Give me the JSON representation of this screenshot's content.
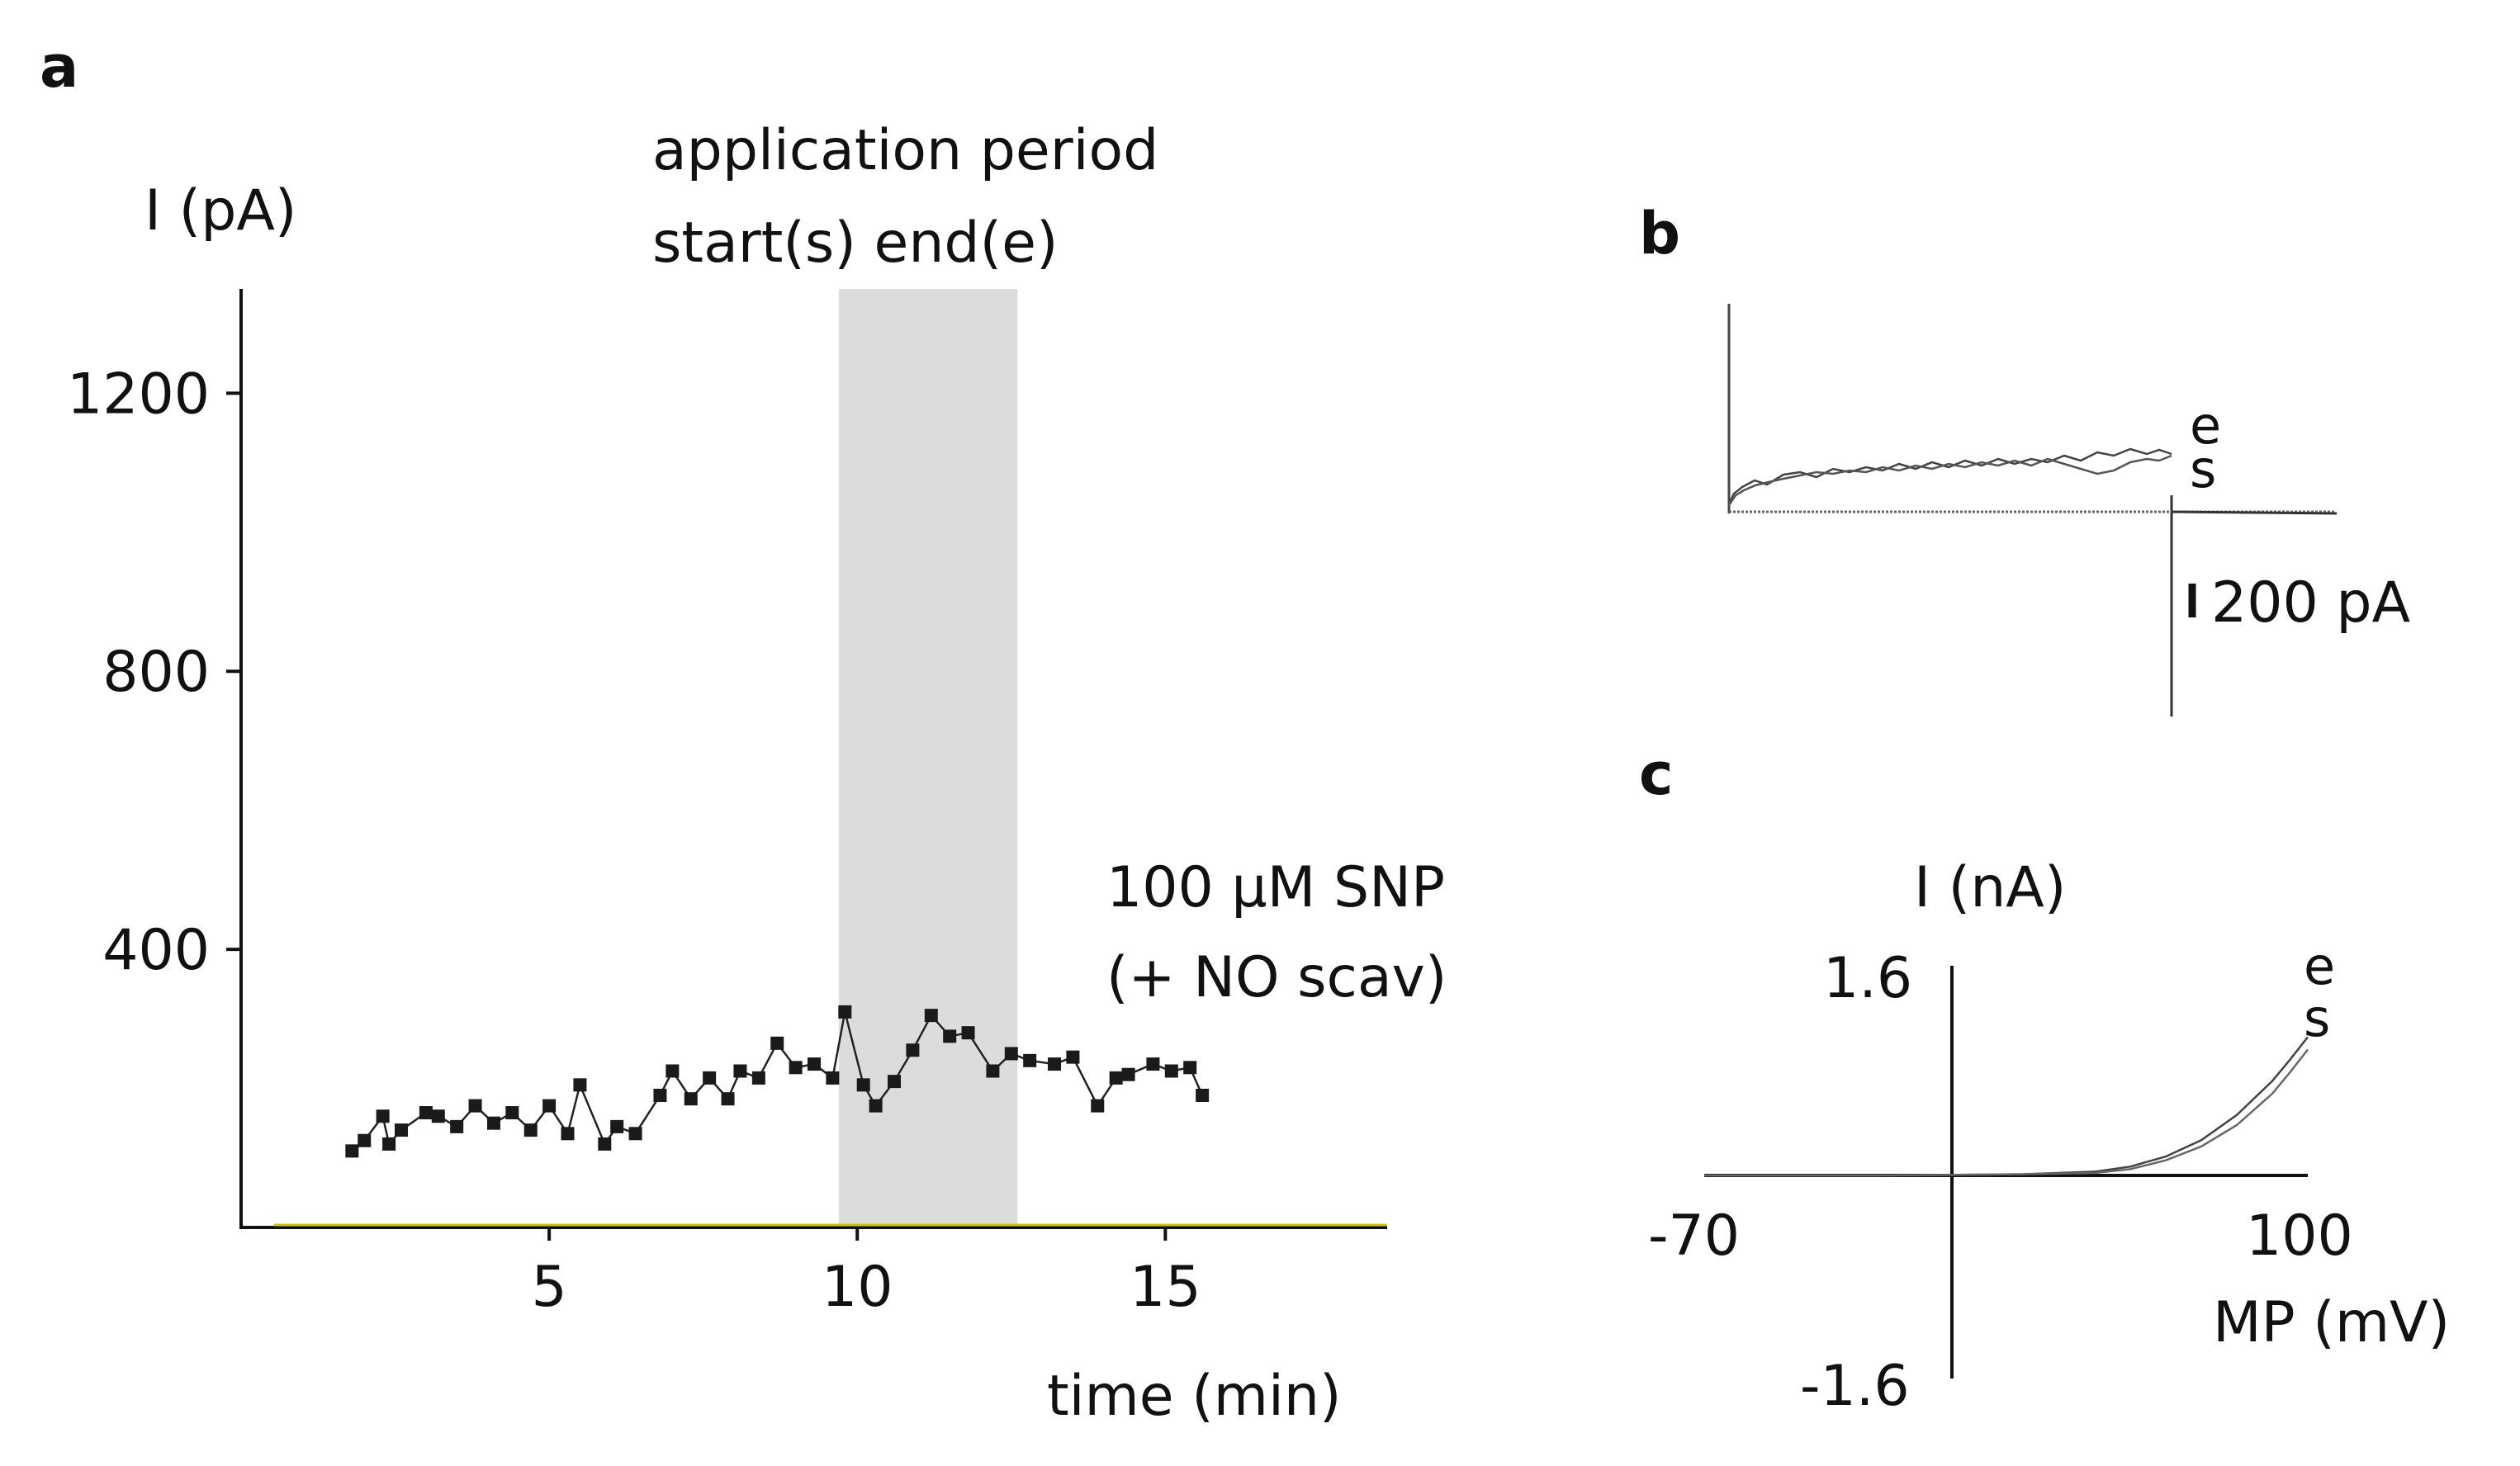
{
  "chart_data": [
    {
      "panel": "a",
      "type": "line",
      "ylabel": "I (pA)",
      "xlabel": "time (min)",
      "xlim": [
        0,
        18.6
      ],
      "ylim": [
        0,
        1350
      ],
      "xticks": [
        5,
        10,
        15
      ],
      "yticks": [
        400,
        800,
        1200
      ],
      "grid": false,
      "shaded_region": {
        "x_start": 9.7,
        "x_end": 12.6,
        "color": "#dcdcdc",
        "label_line1": "application period",
        "label_line2": "start(s) end(e)"
      },
      "annotation_line1": "100 μM SNP",
      "annotation_line2": "(+ NO scav)",
      "baseline_color": "#c8c800",
      "series": [
        {
          "name": "current",
          "marker": "square",
          "x": [
            1.8,
            2.0,
            2.3,
            2.4,
            2.6,
            3.0,
            3.2,
            3.5,
            3.8,
            4.1,
            4.4,
            4.7,
            5.0,
            5.3,
            5.5,
            5.9,
            6.1,
            6.4,
            6.8,
            7.0,
            7.3,
            7.6,
            7.9,
            8.1,
            8.4,
            8.7,
            9.0,
            9.3,
            9.6,
            9.8,
            10.1,
            10.3,
            10.6,
            10.9,
            11.2,
            11.5,
            11.8,
            12.2,
            12.5,
            12.8,
            13.2,
            13.5,
            13.9,
            14.2,
            14.4,
            14.8,
            15.1,
            15.4,
            15.6
          ],
          "y": [
            110,
            125,
            160,
            120,
            140,
            165,
            160,
            145,
            175,
            150,
            165,
            140,
            175,
            135,
            205,
            120,
            145,
            135,
            190,
            225,
            185,
            215,
            185,
            225,
            215,
            265,
            230,
            235,
            215,
            310,
            205,
            175,
            210,
            255,
            305,
            275,
            280,
            225,
            250,
            240,
            235,
            245,
            175,
            215,
            220,
            235,
            225,
            230,
            190
          ]
        }
      ]
    },
    {
      "panel": "b",
      "type": "line",
      "trace_labels": [
        "e",
        "s"
      ],
      "scale_bar_label": "200 pA"
    },
    {
      "panel": "c",
      "type": "line",
      "ylabel": "I (nA)",
      "xlabel": "MP (mV)",
      "xlim": [
        -70,
        100
      ],
      "ylim": [
        -1.6,
        1.6
      ],
      "xtick_labels": [
        "-70",
        "100"
      ],
      "ytick_labels": [
        "1.6",
        "-1.6"
      ],
      "trace_labels": [
        "e",
        "s"
      ],
      "series": [
        {
          "name": "e",
          "x": [
            -70,
            -20,
            20,
            40,
            50,
            60,
            70,
            80,
            90,
            95,
            100
          ],
          "y": [
            0,
            0,
            0.01,
            0.03,
            0.07,
            0.15,
            0.28,
            0.48,
            0.75,
            0.92,
            1.1
          ]
        },
        {
          "name": "s",
          "x": [
            -70,
            -20,
            20,
            40,
            50,
            60,
            70,
            80,
            90,
            95,
            100
          ],
          "y": [
            0,
            0,
            0.01,
            0.02,
            0.05,
            0.12,
            0.23,
            0.4,
            0.65,
            0.82,
            1.0
          ]
        }
      ]
    }
  ]
}
